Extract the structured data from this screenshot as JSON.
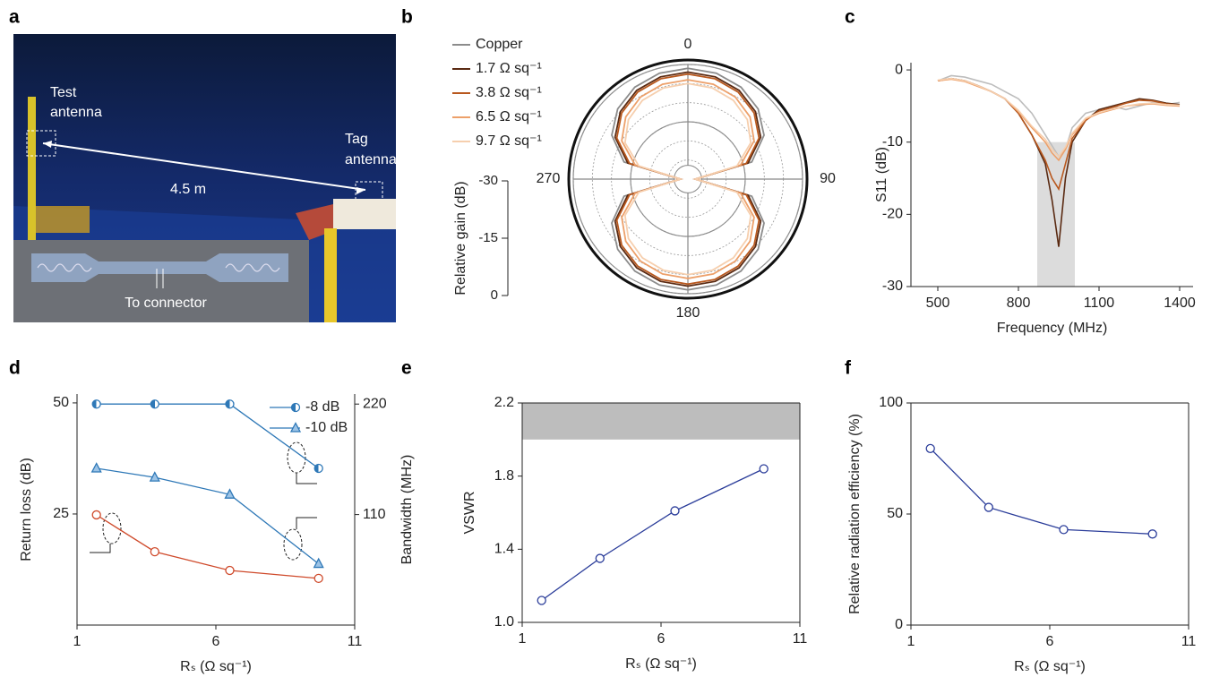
{
  "panel_a": {
    "label": "a",
    "test_antenna": [
      "Test",
      "antenna"
    ],
    "tag_antenna": [
      "Tag",
      "antenna"
    ],
    "distance": "4.5 m",
    "inset": "To connector"
  },
  "chart_data": [
    {
      "type": "polar",
      "label": "b",
      "rlabel": "Relative gain (dB)",
      "legend": "upper left",
      "theta": [
        0,
        15,
        30,
        45,
        60,
        75,
        90,
        105,
        120,
        135,
        150,
        165,
        180,
        195,
        210,
        225,
        240,
        255,
        270,
        285,
        300,
        315,
        330,
        345
      ],
      "rlim": [
        -30,
        0
      ],
      "rticks": [
        -30,
        -15,
        0
      ],
      "thetaticks": [
        0,
        90,
        180,
        270
      ],
      "series": [
        {
          "name": "Copper",
          "color": "#8c8c8c",
          "values": [
            -1,
            -1.3,
            -2.2,
            -4,
            -7,
            -12.7,
            -28,
            -12.7,
            -7,
            -4,
            -2.2,
            -1.3,
            -1,
            -1.3,
            -2.2,
            -4,
            -7,
            -12.7,
            -28,
            -12.7,
            -7,
            -4,
            -2.2,
            -1.3
          ]
        },
        {
          "name": "1.7 Ω sq⁻¹",
          "color": "#5a2a12",
          "values": [
            -2,
            -2.3,
            -3.2,
            -5,
            -8,
            -13.7,
            -28,
            -13.7,
            -8,
            -5,
            -3.2,
            -2.3,
            -2,
            -2.3,
            -3.2,
            -5,
            -8,
            -13.7,
            -28,
            -13.7,
            -8,
            -5,
            -3.2,
            -2.3
          ]
        },
        {
          "name": "3.8 Ω sq⁻¹",
          "color": "#b8581e",
          "values": [
            -2.5,
            -2.8,
            -3.7,
            -5.5,
            -8.5,
            -14.2,
            -28,
            -14.2,
            -8.5,
            -5.5,
            -3.7,
            -2.8,
            -2.5,
            -2.8,
            -3.7,
            -5.5,
            -8.5,
            -14.2,
            -28,
            -14.2,
            -8.5,
            -5.5,
            -3.7,
            -2.8
          ]
        },
        {
          "name": "6.5 Ω sq⁻¹",
          "color": "#eda06a",
          "values": [
            -4,
            -4.3,
            -5.2,
            -7,
            -10,
            -15.7,
            -28,
            -15.7,
            -10,
            -7,
            -5.2,
            -4.3,
            -4,
            -4.3,
            -5.2,
            -7,
            -10,
            -15.7,
            -28,
            -15.7,
            -10,
            -7,
            -5.2,
            -4.3
          ]
        },
        {
          "name": "9.7 Ω sq⁻¹",
          "color": "#f6cfae",
          "values": [
            -5,
            -5.3,
            -6.2,
            -8,
            -11,
            -16.7,
            -28,
            -16.7,
            -11,
            -8,
            -6.2,
            -5.3,
            -5,
            -5.3,
            -6.2,
            -8,
            -11,
            -16.7,
            -28,
            -16.7,
            -11,
            -8,
            -6.2,
            -5.3
          ]
        }
      ]
    },
    {
      "type": "line",
      "label": "c",
      "xlabel": "Frequency (MHz)",
      "ylabel": "S11 (dB)",
      "x": [
        500,
        550,
        600,
        650,
        700,
        750,
        800,
        850,
        900,
        925,
        950,
        975,
        1000,
        1050,
        1100,
        1150,
        1200,
        1250,
        1300,
        1350,
        1400
      ],
      "xlim": [
        400,
        1450
      ],
      "ylim": [
        -30,
        1
      ],
      "xticks": [
        500,
        800,
        1100,
        1400
      ],
      "yticks": [
        0,
        -10,
        -20,
        -30
      ],
      "shade": {
        "x": [
          870,
          1010
        ],
        "y": [
          -30,
          -10
        ],
        "color": "#dcdcdc"
      },
      "series": [
        {
          "color": "#bdbdbd",
          "values": [
            -1.5,
            -0.8,
            -1,
            -1.5,
            -2,
            -3,
            -4,
            -6,
            -9,
            -10.5,
            -12,
            -11,
            -8,
            -6,
            -5.5,
            -5,
            -5.5,
            -5,
            -4.5,
            -4.8,
            -4.5
          ]
        },
        {
          "color": "#5a2a12",
          "values": [
            -1.5,
            -1.2,
            -1.5,
            -2.2,
            -3,
            -4,
            -6,
            -9,
            -13,
            -18,
            -24.5,
            -15,
            -10,
            -7,
            -5.5,
            -5,
            -4.5,
            -4,
            -4.2,
            -4.6,
            -4.8
          ]
        },
        {
          "color": "#b8581e",
          "values": [
            -1.5,
            -1.2,
            -1.5,
            -2.2,
            -3,
            -4,
            -6,
            -9,
            -12.5,
            -15,
            -16.5,
            -13,
            -9.5,
            -7,
            -5.7,
            -5.2,
            -4.6,
            -4.2,
            -4.3,
            -4.7,
            -4.9
          ]
        },
        {
          "color": "#eda06a",
          "values": [
            -1.5,
            -1.3,
            -1.6,
            -2.3,
            -3,
            -4,
            -5.8,
            -8,
            -10,
            -11.5,
            -12.5,
            -11,
            -9,
            -6.8,
            -6,
            -5.5,
            -5,
            -4.8,
            -4.7,
            -4.9,
            -5
          ]
        },
        {
          "color": "#f6cfae",
          "values": [
            -1.4,
            -1.2,
            -1.5,
            -2.2,
            -3,
            -4,
            -5.6,
            -7.8,
            -9.6,
            -11,
            -12,
            -10.7,
            -8.8,
            -6.7,
            -5.9,
            -5.4,
            -5,
            -4.7,
            -4.6,
            -4.8,
            -4.9
          ]
        }
      ]
    },
    {
      "type": "line",
      "label": "d",
      "xlabel": "Rₛ (Ω sq⁻¹)",
      "ylabel": "Return loss (dB)",
      "y2label": "Bandwidth (MHz)",
      "x": [
        1.7,
        3.8,
        6.5,
        9.7
      ],
      "xlim": [
        1,
        11
      ],
      "ylim": [
        0,
        52
      ],
      "y2lim": [
        0,
        230
      ],
      "xticks": [
        1,
        6,
        11
      ],
      "yticks": [
        25,
        50
      ],
      "y2ticks": [
        110,
        220
      ],
      "legend": "upper right",
      "series": [
        {
          "name": "-8 dB",
          "color": "#2e78b7",
          "marker": "half-circle",
          "axis": "y2",
          "values": [
            220,
            220,
            220,
            156
          ]
        },
        {
          "name": "-10 dB",
          "color": "#2e78b7",
          "marker": "triangle",
          "axis": "y2",
          "values": [
            156,
            147,
            130,
            61
          ]
        },
        {
          "color": "#cf4a2b",
          "marker": "open-circle",
          "values": [
            24.8,
            16.5,
            12.3,
            10.5
          ]
        }
      ]
    },
    {
      "type": "line",
      "label": "e",
      "xlabel": "Rₛ (Ω sq⁻¹)",
      "ylabel": "VSWR",
      "frame": true,
      "x": [
        1.7,
        3.8,
        6.5,
        9.7
      ],
      "xlim": [
        1,
        11
      ],
      "ylim": [
        1,
        2.2
      ],
      "xticks": [
        1,
        6,
        11
      ],
      "yticks": [
        {
          "value": 1,
          "label": "1.0"
        },
        1.4,
        1.8,
        2.2
      ],
      "shade": {
        "y": [
          2,
          2.2
        ],
        "color": "#bdbdbd"
      },
      "series": [
        {
          "color": "#2b3d9a",
          "marker": "open-circle",
          "values": [
            1.12,
            1.35,
            1.61,
            1.84
          ]
        }
      ]
    },
    {
      "type": "line",
      "label": "f",
      "xlabel": "Rₛ (Ω sq⁻¹)",
      "ylabel": "Relative radiation efficiency (%)",
      "frame": true,
      "x": [
        1.7,
        3.8,
        6.5,
        9.7
      ],
      "xlim": [
        1,
        11
      ],
      "ylim": [
        0,
        100
      ],
      "xticks": [
        1,
        6,
        11
      ],
      "yticks": [
        0,
        50,
        100
      ],
      "series": [
        {
          "color": "#2b3d9a",
          "marker": "open-circle",
          "values": [
            79.5,
            53,
            43,
            41
          ]
        }
      ]
    }
  ]
}
